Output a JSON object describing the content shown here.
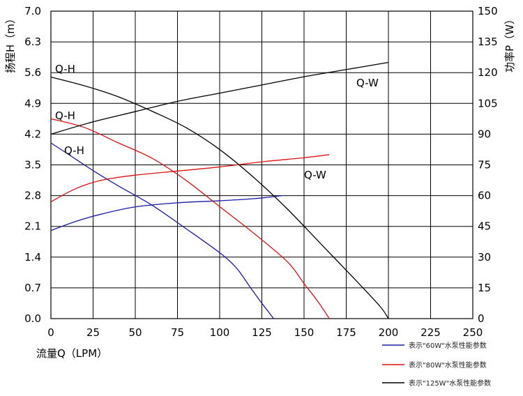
{
  "chart_data": {
    "type": "line",
    "x_axis": {
      "label": "流量Q（LPM）",
      "ticks": [
        "0",
        "25",
        "50",
        "75",
        "100",
        "125",
        "150",
        "175",
        "200",
        "225",
        "250"
      ],
      "lim": [
        0,
        250
      ]
    },
    "y_left": {
      "label": "扬程H（m）",
      "ticks": [
        "0.0",
        "0.7",
        "1.4",
        "2.1",
        "2.8",
        "3.5",
        "4.2",
        "4.9",
        "5.6",
        "6.3",
        "7.0"
      ],
      "lim": [
        0,
        7.0
      ]
    },
    "y_right": {
      "label": "功率P（W）",
      "ticks": [
        "0",
        "15",
        "30",
        "45",
        "60",
        "75",
        "90",
        "105",
        "120",
        "135",
        "150"
      ],
      "lim": [
        0,
        150
      ]
    },
    "grid": true,
    "legend_position": "bottom-right",
    "series": [
      {
        "name": "表示\"60W\"水泵性能参数",
        "color": "#1a1aa8",
        "qh": {
          "label": "Q-H",
          "x": [
            0,
            10,
            25,
            40,
            60,
            80,
            100,
            110,
            118,
            125,
            132
          ],
          "y": [
            4.0,
            3.75,
            3.37,
            3.02,
            2.58,
            2.05,
            1.5,
            1.15,
            0.72,
            0.35,
            0.0
          ]
        },
        "qw": {
          "x": [
            0,
            15,
            30,
            50,
            75,
            100,
            120,
            137
          ],
          "y": [
            43,
            47.5,
            51,
            54.5,
            56.5,
            57.5,
            58.5,
            60
          ]
        }
      },
      {
        "name": "表示\"80W\"水泵性能参数",
        "color": "#dd1111",
        "qh": {
          "label": "Q-H",
          "x": [
            0,
            20,
            40,
            60,
            80,
            100,
            120,
            140,
            150,
            158,
            165
          ],
          "y": [
            4.55,
            4.35,
            4.0,
            3.65,
            3.15,
            2.55,
            1.95,
            1.3,
            0.8,
            0.4,
            0.0
          ]
        },
        "qw": {
          "label": "Q-W",
          "x": [
            0,
            15,
            30,
            50,
            75,
            100,
            125,
            150,
            165
          ],
          "y": [
            57,
            63.5,
            67.5,
            70,
            72,
            74,
            76.5,
            78.5,
            80
          ]
        }
      },
      {
        "name": "表示\"125W\"水泵性能参数",
        "color": "#000000",
        "qh": {
          "label": "Q-H",
          "x": [
            0,
            20,
            40,
            60,
            80,
            100,
            120,
            140,
            160,
            180,
            195,
            200
          ],
          "y": [
            5.5,
            5.3,
            5.05,
            4.72,
            4.35,
            3.85,
            3.22,
            2.5,
            1.7,
            0.9,
            0.28,
            0.0
          ]
        },
        "qw": {
          "label": "Q-W",
          "x": [
            0,
            25,
            50,
            75,
            100,
            125,
            150,
            175,
            200
          ],
          "y": [
            90,
            96,
            101,
            106,
            110,
            114,
            118,
            121.5,
            125
          ]
        }
      }
    ]
  }
}
